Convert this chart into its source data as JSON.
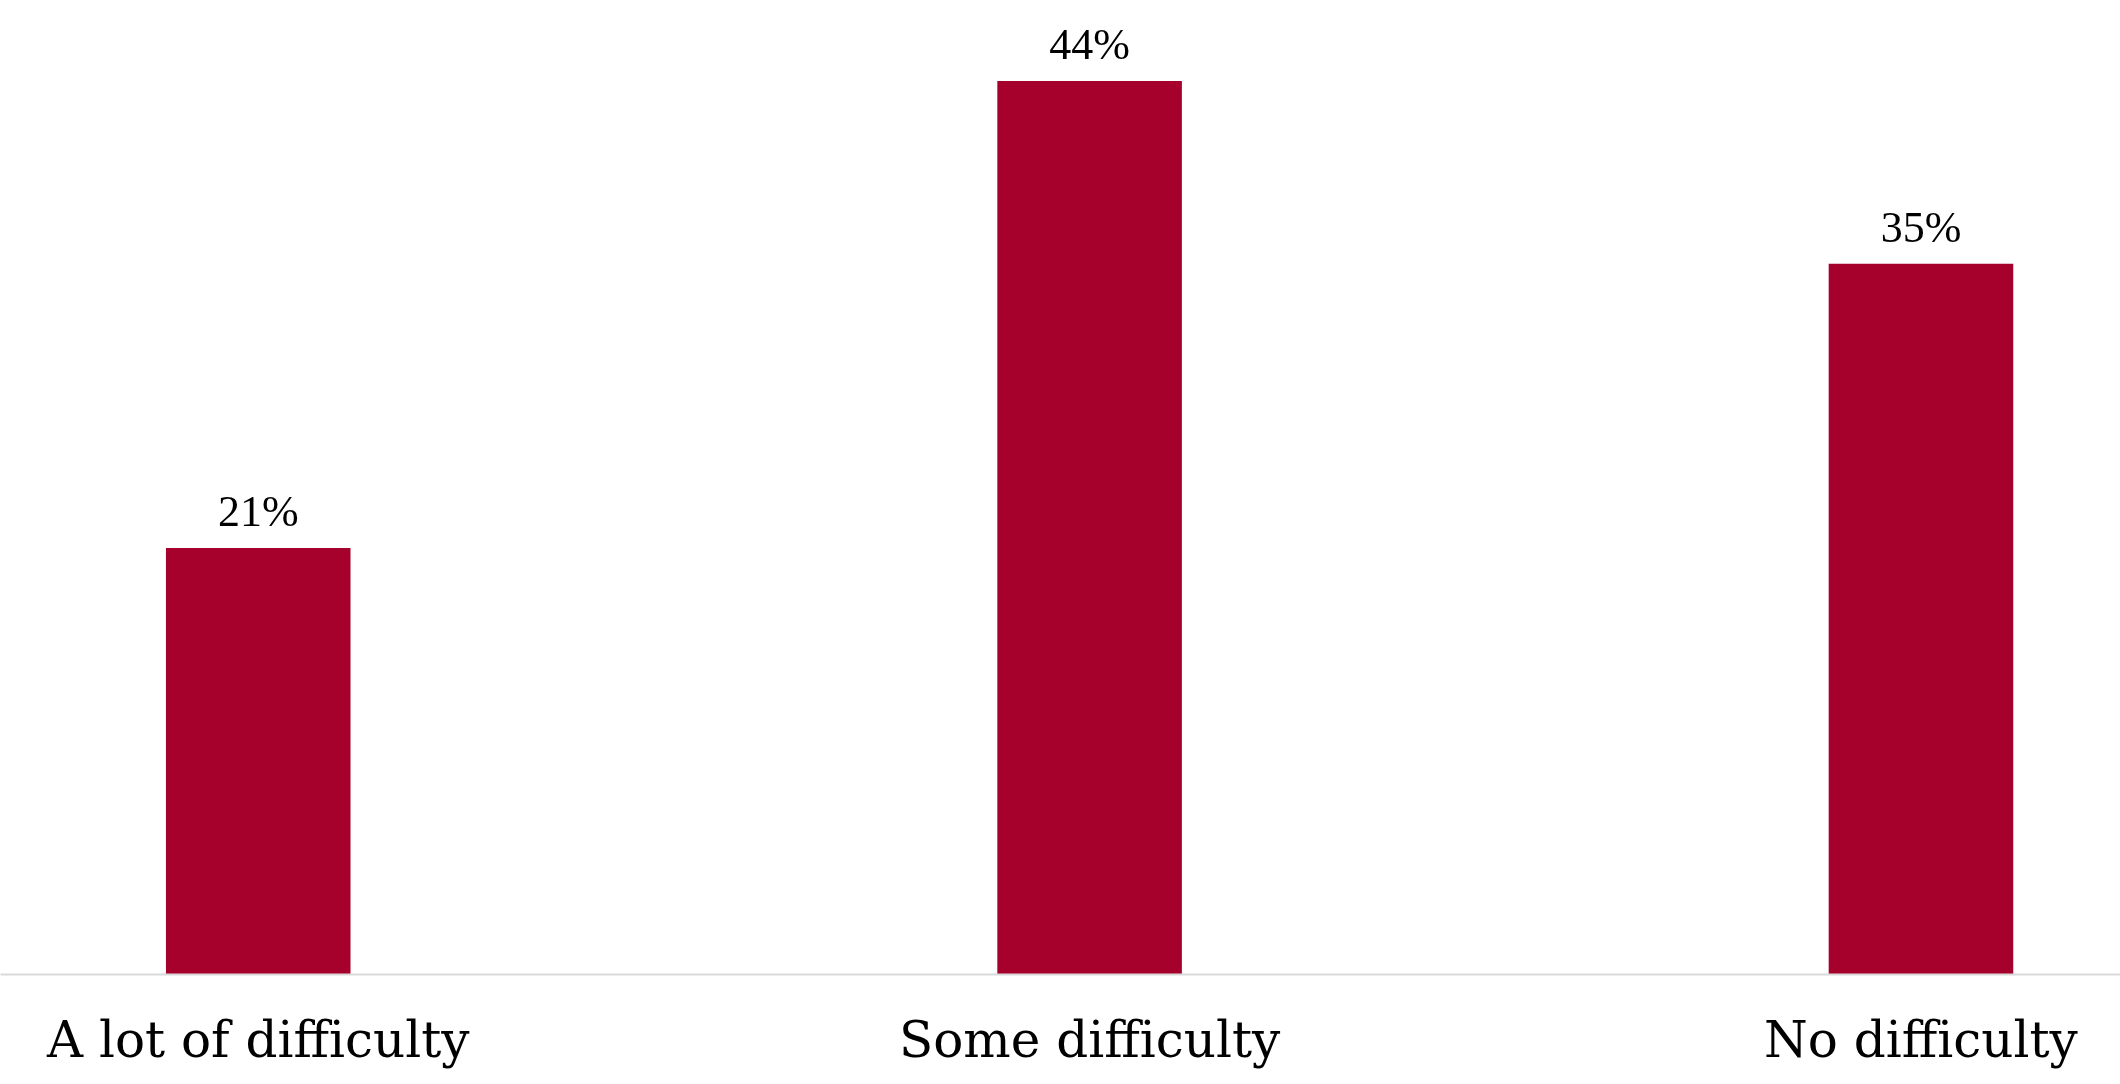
{
  "chart_data": {
    "type": "bar",
    "categories": [
      "A lot of difficulty",
      "Some difficulty",
      "No difficulty"
    ],
    "values": [
      21,
      44,
      35
    ],
    "value_labels": [
      "21%",
      "44%",
      "35%"
    ],
    "color": "#a6002c",
    "grid": false
  }
}
